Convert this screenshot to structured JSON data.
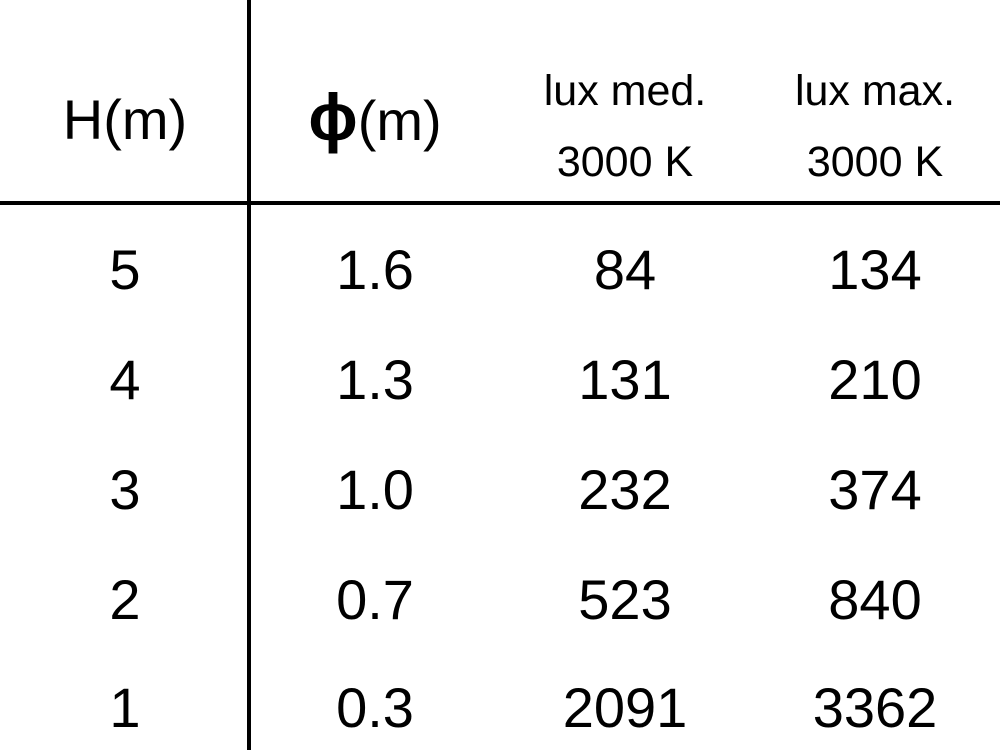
{
  "table": {
    "headers": [
      {
        "line1": "H(m)"
      },
      {
        "symbol": "ϕ",
        "line1": "(m)"
      },
      {
        "line1": "lux med.",
        "line2": "3000 K"
      },
      {
        "line1": "lux max.",
        "line2": "3000 K"
      }
    ],
    "rows": [
      [
        "5",
        "1.6",
        "84",
        "134"
      ],
      [
        "4",
        "1.3",
        "131",
        "210"
      ],
      [
        "3",
        "1.0",
        "232",
        "374"
      ],
      [
        "2",
        "0.7",
        "523",
        "840"
      ],
      [
        "1",
        "0.3",
        "2091",
        "3362"
      ]
    ]
  }
}
